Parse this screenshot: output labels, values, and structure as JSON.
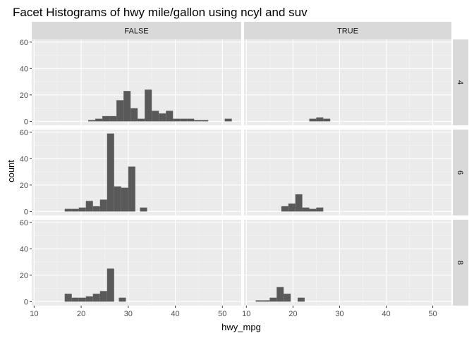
{
  "chart_data": {
    "type": "histogram",
    "title": "Facet Histograms of hwy mile/gallon using ncyl and suv",
    "xlabel": "hwy_mpg",
    "ylabel": "count",
    "xlim": [
      9.5,
      54
    ],
    "ylim": [
      -3,
      62
    ],
    "x_ticks": [
      10,
      20,
      30,
      40,
      50
    ],
    "y_ticks": [
      0,
      20,
      40,
      60
    ],
    "bin_width": 1.5,
    "facet_cols": [
      "FALSE",
      "TRUE"
    ],
    "facet_rows": [
      "4",
      "6",
      "8"
    ],
    "grid": true,
    "panels": [
      {
        "row": "4",
        "col": "FALSE",
        "bins": [
          {
            "x": 22.25,
            "count": 1
          },
          {
            "x": 23.75,
            "count": 2
          },
          {
            "x": 25.25,
            "count": 4
          },
          {
            "x": 26.75,
            "count": 4
          },
          {
            "x": 28.25,
            "count": 16
          },
          {
            "x": 29.75,
            "count": 23
          },
          {
            "x": 31.25,
            "count": 10
          },
          {
            "x": 32.75,
            "count": 2
          },
          {
            "x": 34.25,
            "count": 24
          },
          {
            "x": 35.75,
            "count": 8
          },
          {
            "x": 37.25,
            "count": 6
          },
          {
            "x": 38.75,
            "count": 8
          },
          {
            "x": 40.25,
            "count": 2
          },
          {
            "x": 41.75,
            "count": 2
          },
          {
            "x": 43.25,
            "count": 2
          },
          {
            "x": 44.75,
            "count": 1
          },
          {
            "x": 46.25,
            "count": 1
          },
          {
            "x": 51.25,
            "count": 2
          }
        ]
      },
      {
        "row": "4",
        "col": "TRUE",
        "bins": [
          {
            "x": 24.25,
            "count": 2
          },
          {
            "x": 25.75,
            "count": 3
          },
          {
            "x": 27.25,
            "count": 2
          }
        ]
      },
      {
        "row": "6",
        "col": "FALSE",
        "bins": [
          {
            "x": 17.25,
            "count": 2
          },
          {
            "x": 18.75,
            "count": 2
          },
          {
            "x": 20.25,
            "count": 3
          },
          {
            "x": 21.75,
            "count": 8
          },
          {
            "x": 23.25,
            "count": 4
          },
          {
            "x": 24.75,
            "count": 9
          },
          {
            "x": 26.25,
            "count": 59
          },
          {
            "x": 27.75,
            "count": 19
          },
          {
            "x": 29.25,
            "count": 18
          },
          {
            "x": 30.75,
            "count": 34
          },
          {
            "x": 33.25,
            "count": 3
          }
        ]
      },
      {
        "row": "6",
        "col": "TRUE",
        "bins": [
          {
            "x": 18.25,
            "count": 4
          },
          {
            "x": 19.75,
            "count": 6
          },
          {
            "x": 21.25,
            "count": 13
          },
          {
            "x": 22.75,
            "count": 3
          },
          {
            "x": 24.25,
            "count": 2
          },
          {
            "x": 25.75,
            "count": 3
          }
        ]
      },
      {
        "row": "8",
        "col": "FALSE",
        "bins": [
          {
            "x": 17.25,
            "count": 6
          },
          {
            "x": 18.75,
            "count": 3
          },
          {
            "x": 20.25,
            "count": 3
          },
          {
            "x": 21.75,
            "count": 4
          },
          {
            "x": 23.25,
            "count": 6
          },
          {
            "x": 24.75,
            "count": 8
          },
          {
            "x": 26.25,
            "count": 25
          },
          {
            "x": 28.75,
            "count": 3
          }
        ]
      },
      {
        "row": "8",
        "col": "TRUE",
        "bins": [
          {
            "x": 12.75,
            "count": 1
          },
          {
            "x": 14.25,
            "count": 1
          },
          {
            "x": 15.75,
            "count": 3
          },
          {
            "x": 17.25,
            "count": 11
          },
          {
            "x": 18.75,
            "count": 6
          },
          {
            "x": 21.75,
            "count": 3
          }
        ]
      }
    ],
    "colors": {
      "panel_bg": "#ebebeb",
      "grid_major": "#ffffff",
      "strip_bg": "#d9d9d9",
      "bar_fill": "#595959",
      "text": "#1a1a1a",
      "tick_text": "#4d4d4d"
    }
  }
}
